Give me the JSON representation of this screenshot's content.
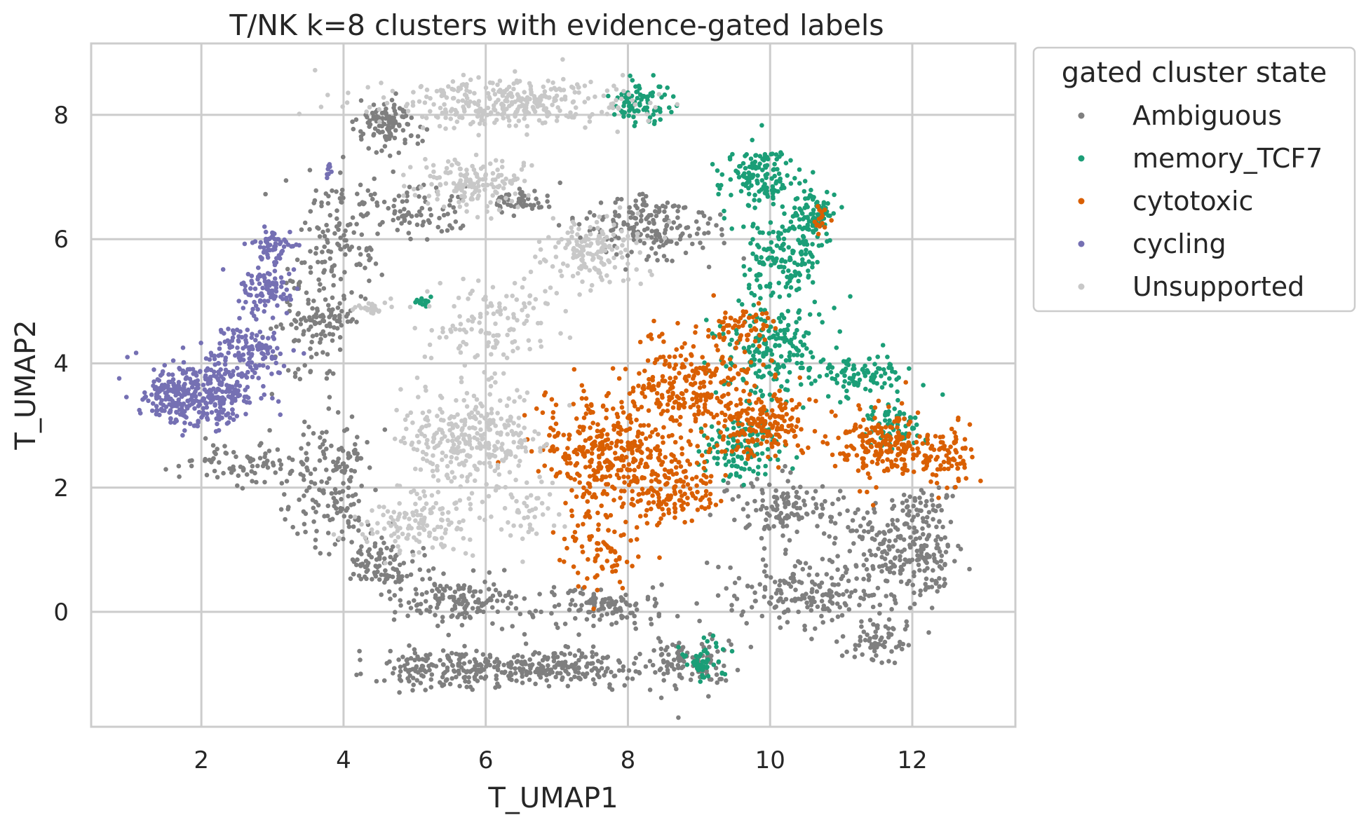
{
  "chart_data": {
    "type": "scatter",
    "title": "T/NK k=8 clusters with evidence-gated labels",
    "xlabel": "T_UMAP1",
    "ylabel": "T_UMAP2",
    "xlim": [
      0.45,
      13.45
    ],
    "ylim": [
      -1.85,
      9.15
    ],
    "xticks": [
      2,
      4,
      6,
      8,
      10,
      12
    ],
    "yticks": [
      0,
      2,
      4,
      6,
      8
    ],
    "grid": true,
    "legend": {
      "title": "gated cluster state",
      "placement": "outside-top-right"
    },
    "series": [
      {
        "name": "Ambiguous",
        "color": "#7f7f7f",
        "regions": [
          {
            "cx": 4.6,
            "cy": 7.8,
            "rx": 0.4,
            "ry": 0.4,
            "n": 110
          },
          {
            "cx": 4.0,
            "cy": 6.0,
            "rx": 0.5,
            "ry": 0.9,
            "n": 120
          },
          {
            "cx": 5.0,
            "cy": 6.4,
            "rx": 0.6,
            "ry": 0.4,
            "n": 80
          },
          {
            "cx": 3.8,
            "cy": 4.8,
            "rx": 0.3,
            "ry": 0.2,
            "n": 40
          },
          {
            "cx": 6.5,
            "cy": 6.6,
            "rx": 0.4,
            "ry": 0.2,
            "n": 50
          },
          {
            "cx": 8.3,
            "cy": 6.2,
            "rx": 0.9,
            "ry": 0.5,
            "n": 180
          },
          {
            "cx": 2.6,
            "cy": 2.4,
            "rx": 0.9,
            "ry": 0.3,
            "n": 90
          },
          {
            "cx": 3.5,
            "cy": 4.5,
            "rx": 0.4,
            "ry": 0.9,
            "n": 90
          },
          {
            "cx": 3.9,
            "cy": 2.0,
            "rx": 0.5,
            "ry": 1.0,
            "n": 160
          },
          {
            "cx": 4.6,
            "cy": 0.8,
            "rx": 0.5,
            "ry": 0.4,
            "n": 90
          },
          {
            "cx": 5.6,
            "cy": 0.2,
            "rx": 0.8,
            "ry": 0.4,
            "n": 150
          },
          {
            "cx": 5.4,
            "cy": -0.9,
            "rx": 0.9,
            "ry": 0.3,
            "n": 170
          },
          {
            "cx": 7.0,
            "cy": -0.9,
            "rx": 1.1,
            "ry": 0.3,
            "n": 200
          },
          {
            "cx": 8.8,
            "cy": -0.8,
            "rx": 0.6,
            "ry": 0.4,
            "n": 110
          },
          {
            "cx": 7.7,
            "cy": 0.1,
            "rx": 0.9,
            "ry": 0.3,
            "n": 120
          },
          {
            "cx": 10.6,
            "cy": 0.3,
            "rx": 1.0,
            "ry": 0.5,
            "n": 200
          },
          {
            "cx": 11.5,
            "cy": -0.5,
            "rx": 0.4,
            "ry": 0.3,
            "n": 60
          },
          {
            "cx": 11.7,
            "cy": 1.1,
            "rx": 0.7,
            "ry": 0.6,
            "n": 150
          },
          {
            "cx": 12.3,
            "cy": 0.7,
            "rx": 0.3,
            "ry": 0.6,
            "n": 70
          },
          {
            "cx": 10.2,
            "cy": 1.7,
            "rx": 0.8,
            "ry": 0.4,
            "n": 120
          },
          {
            "cx": 12.2,
            "cy": 1.7,
            "rx": 0.4,
            "ry": 0.3,
            "n": 40
          }
        ]
      },
      {
        "name": "memory_TCF7",
        "color": "#1b9e77",
        "regions": [
          {
            "cx": 8.2,
            "cy": 8.2,
            "rx": 0.4,
            "ry": 0.3,
            "n": 90
          },
          {
            "cx": 9.8,
            "cy": 7.0,
            "rx": 0.5,
            "ry": 0.4,
            "n": 140
          },
          {
            "cx": 10.6,
            "cy": 6.4,
            "rx": 0.3,
            "ry": 0.3,
            "n": 80
          },
          {
            "cx": 10.2,
            "cy": 5.8,
            "rx": 0.5,
            "ry": 0.7,
            "n": 160
          },
          {
            "cx": 10.0,
            "cy": 4.2,
            "rx": 0.7,
            "ry": 0.8,
            "n": 200
          },
          {
            "cx": 9.6,
            "cy": 2.6,
            "rx": 0.5,
            "ry": 0.5,
            "n": 120
          },
          {
            "cx": 11.3,
            "cy": 3.8,
            "rx": 0.6,
            "ry": 0.3,
            "n": 90
          },
          {
            "cx": 11.8,
            "cy": 3.0,
            "rx": 0.4,
            "ry": 0.4,
            "n": 60
          },
          {
            "cx": 9.1,
            "cy": -0.8,
            "rx": 0.3,
            "ry": 0.3,
            "n": 50
          },
          {
            "cx": 5.1,
            "cy": 5.0,
            "rx": 0.1,
            "ry": 0.08,
            "n": 15
          }
        ]
      },
      {
        "name": "cytotoxic",
        "color": "#d95f02",
        "regions": [
          {
            "cx": 7.7,
            "cy": 2.6,
            "rx": 0.9,
            "ry": 0.8,
            "n": 330
          },
          {
            "cx": 8.6,
            "cy": 2.0,
            "rx": 0.6,
            "ry": 0.5,
            "n": 150
          },
          {
            "cx": 8.9,
            "cy": 3.6,
            "rx": 0.9,
            "ry": 0.8,
            "n": 260
          },
          {
            "cx": 9.9,
            "cy": 3.0,
            "rx": 0.6,
            "ry": 0.5,
            "n": 170
          },
          {
            "cx": 9.6,
            "cy": 4.6,
            "rx": 0.4,
            "ry": 0.3,
            "n": 60
          },
          {
            "cx": 11.6,
            "cy": 2.7,
            "rx": 0.7,
            "ry": 0.5,
            "n": 210
          },
          {
            "cx": 12.5,
            "cy": 2.5,
            "rx": 0.3,
            "ry": 0.4,
            "n": 70
          },
          {
            "cx": 7.6,
            "cy": 1.0,
            "rx": 0.5,
            "ry": 0.6,
            "n": 80
          },
          {
            "cx": 10.7,
            "cy": 6.3,
            "rx": 0.1,
            "ry": 0.2,
            "n": 15
          }
        ]
      },
      {
        "name": "cycling",
        "color": "#7570b3",
        "regions": [
          {
            "cx": 2.0,
            "cy": 3.5,
            "rx": 0.7,
            "ry": 0.5,
            "n": 300
          },
          {
            "cx": 2.7,
            "cy": 4.2,
            "rx": 0.5,
            "ry": 0.4,
            "n": 120
          },
          {
            "cx": 2.9,
            "cy": 5.2,
            "rx": 0.4,
            "ry": 0.4,
            "n": 90
          },
          {
            "cx": 3.0,
            "cy": 5.9,
            "rx": 0.3,
            "ry": 0.3,
            "n": 60
          },
          {
            "cx": 1.5,
            "cy": 3.5,
            "rx": 0.3,
            "ry": 0.3,
            "n": 60
          },
          {
            "cx": 3.8,
            "cy": 7.1,
            "rx": 0.06,
            "ry": 0.2,
            "n": 8
          }
        ]
      },
      {
        "name": "Unsupported",
        "color": "#c8c8c8",
        "regions": [
          {
            "cx": 6.3,
            "cy": 8.2,
            "rx": 1.6,
            "ry": 0.35,
            "n": 330
          },
          {
            "cx": 5.8,
            "cy": 6.9,
            "rx": 0.8,
            "ry": 0.4,
            "n": 150
          },
          {
            "cx": 7.5,
            "cy": 5.8,
            "rx": 0.6,
            "ry": 0.5,
            "n": 150
          },
          {
            "cx": 6.0,
            "cy": 4.7,
            "rx": 1.0,
            "ry": 0.7,
            "n": 120
          },
          {
            "cx": 5.7,
            "cy": 2.8,
            "rx": 0.9,
            "ry": 0.8,
            "n": 330
          },
          {
            "cx": 5.0,
            "cy": 1.4,
            "rx": 0.7,
            "ry": 0.4,
            "n": 130
          },
          {
            "cx": 4.4,
            "cy": 4.9,
            "rx": 0.3,
            "ry": 0.1,
            "n": 25
          },
          {
            "cx": 6.6,
            "cy": 1.5,
            "rx": 0.4,
            "ry": 0.5,
            "n": 40
          }
        ]
      }
    ]
  }
}
